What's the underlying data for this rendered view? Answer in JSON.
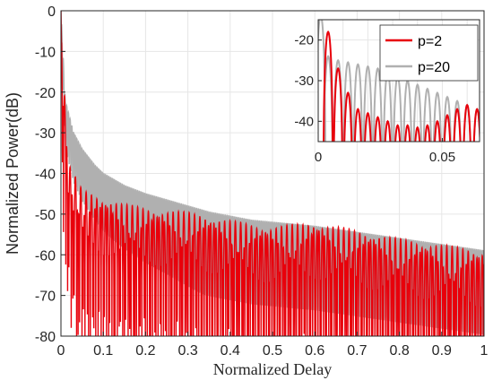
{
  "chart_data": [
    {
      "type": "line",
      "title": "",
      "xlabel": "Normalized Delay",
      "ylabel": "Normalized Power(dB)",
      "xlim": [
        0,
        1
      ],
      "ylim": [
        -80,
        0
      ],
      "xticks": [
        "0",
        "0.1",
        "0.2",
        "0.3",
        "0.4",
        "0.5",
        "0.6",
        "0.7",
        "0.8",
        "0.9",
        "1"
      ],
      "yticks": [
        "0",
        "-10",
        "-20",
        "-30",
        "-40",
        "-50",
        "-60",
        "-70",
        "-80"
      ],
      "grid": true,
      "series": [
        {
          "name": "p=2",
          "color": "#e8000b",
          "envelope_x": [
            0.0,
            0.01,
            0.02,
            0.05,
            0.1,
            0.15,
            0.2,
            0.25,
            0.3,
            0.35,
            0.4,
            0.45,
            0.5,
            0.55,
            0.6,
            0.7,
            0.8,
            0.9,
            1.0
          ],
          "envelope_y": [
            0,
            -24,
            -38,
            -44,
            -46,
            -47.5,
            -48.5,
            -49,
            -49.5,
            -50.5,
            -51.5,
            -52.5,
            -53,
            -52.5,
            -52,
            -54,
            -56,
            -57.5,
            -59
          ]
        },
        {
          "name": "p=20",
          "color": "#b0b0b0",
          "envelope_x": [
            0.0,
            0.01,
            0.02,
            0.03,
            0.05,
            0.08,
            0.1,
            0.15,
            0.2,
            0.25,
            0.3,
            0.35,
            0.4,
            0.45,
            0.5,
            0.55,
            0.6,
            0.7,
            0.8,
            0.9,
            1.0
          ],
          "envelope_y": [
            0,
            -22,
            -26,
            -30,
            -34,
            -38,
            -40,
            -43,
            -45,
            -46.5,
            -48,
            -49.5,
            -50.5,
            -51.5,
            -52,
            -52.5,
            -53,
            -54.5,
            -56,
            -57.5,
            -59
          ]
        }
      ]
    },
    {
      "type": "line",
      "title": "",
      "xlim": [
        0,
        0.065
      ],
      "ylim": [
        -45,
        -15
      ],
      "xticks": [
        "0",
        "0.05"
      ],
      "yticks": [
        "-20",
        "-30",
        "-40"
      ],
      "grid": true,
      "legend": {
        "position": "top-right",
        "entries": [
          "p=2",
          "p=20"
        ]
      },
      "series": [
        {
          "name": "p=2",
          "color": "#e8000b",
          "peak_x": [
            0.004,
            0.008,
            0.012,
            0.016,
            0.02,
            0.024,
            0.028,
            0.032,
            0.036,
            0.04,
            0.044,
            0.048,
            0.052,
            0.056,
            0.06,
            0.064
          ],
          "peak_y": [
            -18,
            -27,
            -33,
            -37,
            -38,
            -39,
            -40,
            -41,
            -41,
            -41.5,
            -41,
            -40,
            -38.5,
            -37,
            -36,
            -37
          ]
        },
        {
          "name": "p=20",
          "color": "#b0b0b0",
          "peak_x": [
            0.001,
            0.004,
            0.008,
            0.012,
            0.016,
            0.02,
            0.024,
            0.028,
            0.032,
            0.036,
            0.04,
            0.044,
            0.048,
            0.052,
            0.056,
            0.06,
            0.064
          ],
          "peak_y": [
            -14,
            -24,
            -25,
            -25.5,
            -26,
            -26.5,
            -27,
            -28,
            -29,
            -30,
            -31,
            -32,
            -33,
            -34,
            -35,
            -36,
            -37
          ]
        }
      ]
    }
  ]
}
